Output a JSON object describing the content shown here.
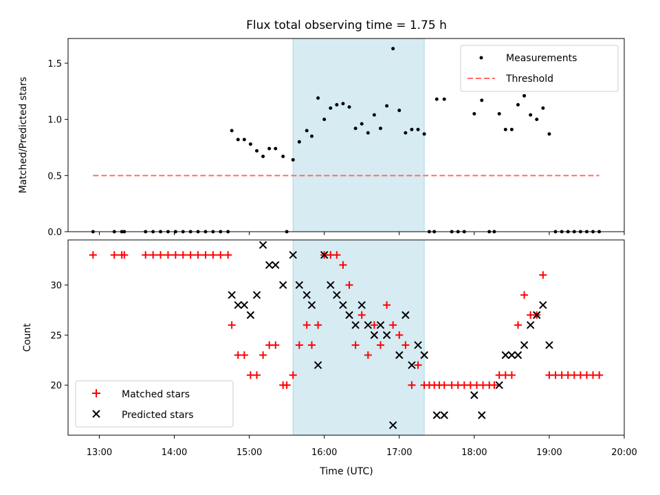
{
  "title": "Flux total observing time = 1.75 h",
  "colors": {
    "measurements": "#000000",
    "threshold": "#ff6b6b",
    "matched": "#ff0000",
    "predicted": "#000000",
    "span": "#add8e6"
  },
  "chart_data": [
    {
      "type": "scatter",
      "ylabel": "Matched/Predicted stars",
      "xlim": [
        "12:35",
        "20:00"
      ],
      "ylim": [
        0,
        1.72
      ],
      "yticks": [
        "0.0",
        "0.5",
        "1.0",
        "1.5"
      ],
      "highlight_span": [
        "15:35",
        "17:20"
      ],
      "legend_position": "top-right",
      "legend": [
        "Measurements",
        "Threshold"
      ],
      "threshold": {
        "y": 0.5,
        "x_range": [
          "12:55",
          "19:40"
        ]
      },
      "series": [
        {
          "name": "Measurements",
          "points": [
            [
              "12:55",
              0
            ],
            [
              "13:12",
              0
            ],
            [
              "13:18",
              0
            ],
            [
              "13:20",
              0
            ],
            [
              "13:37",
              0
            ],
            [
              "13:43",
              0
            ],
            [
              "13:49",
              0
            ],
            [
              "13:55",
              0
            ],
            [
              "14:01",
              0
            ],
            [
              "14:07",
              0
            ],
            [
              "14:13",
              0
            ],
            [
              "14:19",
              0
            ],
            [
              "14:25",
              0
            ],
            [
              "14:31",
              0
            ],
            [
              "14:37",
              0
            ],
            [
              "14:43",
              0
            ],
            [
              "14:46",
              0.9
            ],
            [
              "14:51",
              0.82
            ],
            [
              "14:56",
              0.82
            ],
            [
              "15:01",
              0.78
            ],
            [
              "15:06",
              0.72
            ],
            [
              "15:11",
              0.67
            ],
            [
              "15:16",
              0.74
            ],
            [
              "15:21",
              0.74
            ],
            [
              "15:27",
              0.67
            ],
            [
              "15:30",
              0
            ],
            [
              "15:35",
              0.64
            ],
            [
              "15:40",
              0.8
            ],
            [
              "15:46",
              0.9
            ],
            [
              "15:50",
              0.85
            ],
            [
              "15:55",
              1.19
            ],
            [
              "16:00",
              1.0
            ],
            [
              "16:05",
              1.1
            ],
            [
              "16:10",
              1.13
            ],
            [
              "16:15",
              1.14
            ],
            [
              "16:20",
              1.11
            ],
            [
              "16:25",
              0.92
            ],
            [
              "16:30",
              0.96
            ],
            [
              "16:35",
              0.88
            ],
            [
              "16:40",
              1.04
            ],
            [
              "16:45",
              0.92
            ],
            [
              "16:50",
              1.12
            ],
            [
              "16:55",
              1.63
            ],
            [
              "17:00",
              1.08
            ],
            [
              "17:05",
              0.88
            ],
            [
              "17:10",
              0.91
            ],
            [
              "17:15",
              0.91
            ],
            [
              "17:20",
              0.87
            ],
            [
              "17:24",
              0
            ],
            [
              "17:28",
              0
            ],
            [
              "17:30",
              1.18
            ],
            [
              "17:36",
              1.18
            ],
            [
              "17:42",
              0
            ],
            [
              "17:47",
              0
            ],
            [
              "17:52",
              0
            ],
            [
              "18:00",
              1.05
            ],
            [
              "18:06",
              1.17
            ],
            [
              "18:12",
              0
            ],
            [
              "18:16",
              0
            ],
            [
              "18:20",
              1.05
            ],
            [
              "18:25",
              0.91
            ],
            [
              "18:30",
              0.91
            ],
            [
              "18:35",
              1.13
            ],
            [
              "18:40",
              1.21
            ],
            [
              "18:45",
              1.04
            ],
            [
              "18:50",
              1.0
            ],
            [
              "18:55",
              1.1
            ],
            [
              "19:00",
              0.87
            ],
            [
              "19:05",
              0
            ],
            [
              "19:10",
              0
            ],
            [
              "19:15",
              0
            ],
            [
              "19:20",
              0
            ],
            [
              "19:25",
              0
            ],
            [
              "19:30",
              0
            ],
            [
              "19:35",
              0
            ],
            [
              "19:40",
              0
            ]
          ]
        }
      ]
    },
    {
      "type": "scatter",
      "xlabel": "Time (UTC)",
      "ylabel": "Count",
      "xlim": [
        "12:35",
        "20:00"
      ],
      "ylim": [
        15,
        34.5
      ],
      "xticks": [
        "13:00",
        "14:00",
        "15:00",
        "16:00",
        "17:00",
        "18:00",
        "19:00",
        "20:00"
      ],
      "yticks": [
        "20",
        "25",
        "30"
      ],
      "highlight_span": [
        "15:35",
        "17:20"
      ],
      "legend_position": "bottom-left",
      "series": [
        {
          "name": "Matched stars",
          "points": [
            [
              "12:55",
              33
            ],
            [
              "13:12",
              33
            ],
            [
              "13:18",
              33
            ],
            [
              "13:20",
              33
            ],
            [
              "13:37",
              33
            ],
            [
              "13:43",
              33
            ],
            [
              "13:49",
              33
            ],
            [
              "13:55",
              33
            ],
            [
              "14:01",
              33
            ],
            [
              "14:07",
              33
            ],
            [
              "14:13",
              33
            ],
            [
              "14:19",
              33
            ],
            [
              "14:25",
              33
            ],
            [
              "14:31",
              33
            ],
            [
              "14:37",
              33
            ],
            [
              "14:43",
              33
            ],
            [
              "14:46",
              26
            ],
            [
              "14:51",
              23
            ],
            [
              "14:56",
              23
            ],
            [
              "15:01",
              21
            ],
            [
              "15:06",
              21
            ],
            [
              "15:11",
              23
            ],
            [
              "15:16",
              24
            ],
            [
              "15:21",
              24
            ],
            [
              "15:27",
              20
            ],
            [
              "15:30",
              20
            ],
            [
              "15:35",
              21
            ],
            [
              "15:40",
              24
            ],
            [
              "15:46",
              26
            ],
            [
              "15:50",
              24
            ],
            [
              "15:55",
              26
            ],
            [
              "16:00",
              33
            ],
            [
              "16:05",
              33
            ],
            [
              "16:10",
              33
            ],
            [
              "16:15",
              32
            ],
            [
              "16:20",
              30
            ],
            [
              "16:25",
              24
            ],
            [
              "16:30",
              27
            ],
            [
              "16:35",
              23
            ],
            [
              "16:40",
              26
            ],
            [
              "16:45",
              24
            ],
            [
              "16:50",
              28
            ],
            [
              "16:55",
              26
            ],
            [
              "17:00",
              25
            ],
            [
              "17:05",
              24
            ],
            [
              "17:10",
              20
            ],
            [
              "17:15",
              22
            ],
            [
              "17:20",
              20
            ],
            [
              "17:24",
              20
            ],
            [
              "17:28",
              20
            ],
            [
              "17:32",
              20
            ],
            [
              "17:36",
              20
            ],
            [
              "17:42",
              20
            ],
            [
              "17:47",
              20
            ],
            [
              "17:52",
              20
            ],
            [
              "17:57",
              20
            ],
            [
              "18:02",
              20
            ],
            [
              "18:07",
              20
            ],
            [
              "18:12",
              20
            ],
            [
              "18:16",
              20
            ],
            [
              "18:20",
              21
            ],
            [
              "18:25",
              21
            ],
            [
              "18:30",
              21
            ],
            [
              "18:35",
              26
            ],
            [
              "18:40",
              29
            ],
            [
              "18:45",
              27
            ],
            [
              "18:50",
              27
            ],
            [
              "18:55",
              31
            ],
            [
              "19:00",
              21
            ],
            [
              "19:05",
              21
            ],
            [
              "19:10",
              21
            ],
            [
              "19:15",
              21
            ],
            [
              "19:20",
              21
            ],
            [
              "19:25",
              21
            ],
            [
              "19:30",
              21
            ],
            [
              "19:35",
              21
            ],
            [
              "19:40",
              21
            ]
          ]
        },
        {
          "name": "Predicted stars",
          "points": [
            [
              "14:46",
              29
            ],
            [
              "14:51",
              28
            ],
            [
              "14:56",
              28
            ],
            [
              "15:01",
              27
            ],
            [
              "15:06",
              29
            ],
            [
              "15:11",
              34
            ],
            [
              "15:16",
              32
            ],
            [
              "15:21",
              32
            ],
            [
              "15:27",
              30
            ],
            [
              "15:35",
              33
            ],
            [
              "15:40",
              30
            ],
            [
              "15:46",
              29
            ],
            [
              "15:50",
              28
            ],
            [
              "15:55",
              22
            ],
            [
              "16:00",
              33
            ],
            [
              "16:05",
              30
            ],
            [
              "16:10",
              29
            ],
            [
              "16:15",
              28
            ],
            [
              "16:20",
              27
            ],
            [
              "16:25",
              26
            ],
            [
              "16:30",
              28
            ],
            [
              "16:35",
              26
            ],
            [
              "16:40",
              25
            ],
            [
              "16:45",
              26
            ],
            [
              "16:50",
              25
            ],
            [
              "16:55",
              16
            ],
            [
              "17:00",
              23
            ],
            [
              "17:05",
              27
            ],
            [
              "17:10",
              22
            ],
            [
              "17:15",
              24
            ],
            [
              "17:20",
              23
            ],
            [
              "17:30",
              17
            ],
            [
              "17:36",
              17
            ],
            [
              "18:00",
              19
            ],
            [
              "18:06",
              17
            ],
            [
              "18:20",
              20
            ],
            [
              "18:25",
              23
            ],
            [
              "18:30",
              23
            ],
            [
              "18:35",
              23
            ],
            [
              "18:40",
              24
            ],
            [
              "18:45",
              26
            ],
            [
              "18:50",
              27
            ],
            [
              "18:55",
              28
            ],
            [
              "19:00",
              24
            ]
          ]
        }
      ]
    }
  ]
}
